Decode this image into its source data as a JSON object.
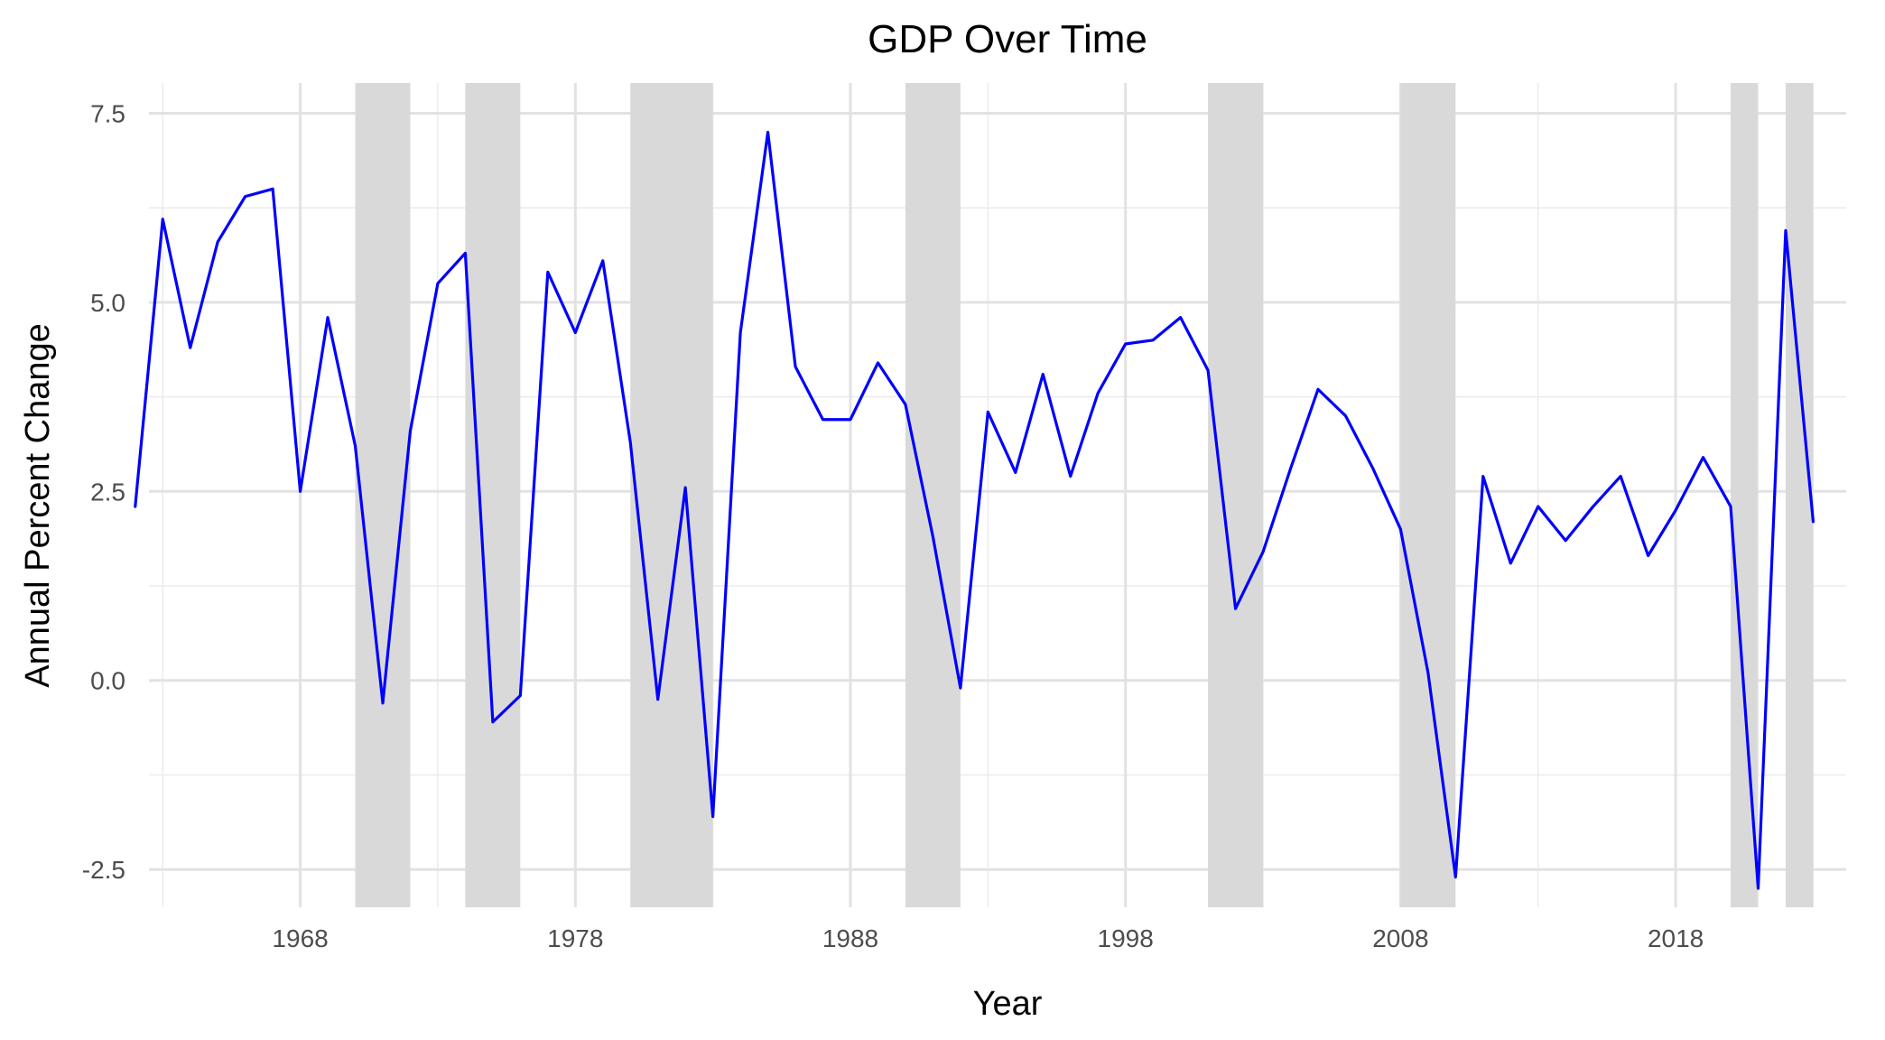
{
  "chart_data": {
    "type": "line",
    "title": "GDP Over Time",
    "xlabel": "Year",
    "ylabel": "Annual Percent Change",
    "xlim": [
      1962.5,
      2024.2
    ],
    "ylim": [
      -3.0,
      7.9
    ],
    "x_ticks": [
      1968,
      1978,
      1988,
      1998,
      2008,
      2018
    ],
    "x_minor_ticks": [
      1963,
      1973,
      1983,
      1993,
      2003,
      2013,
      2023
    ],
    "y_ticks": [
      -2.5,
      0.0,
      2.5,
      5.0,
      7.5
    ],
    "y_tick_labels": [
      "-2.5",
      "0.0",
      "2.5",
      "5.0",
      "7.5"
    ],
    "y_minor_ticks": [
      -1.25,
      1.25,
      3.75,
      6.25
    ],
    "grid": true,
    "line_color": "#0000ff",
    "shade_color": "#d9d9d9",
    "recession_shading": [
      [
        1970,
        1972
      ],
      [
        1974,
        1976
      ],
      [
        1980,
        1983
      ],
      [
        1990,
        1992
      ],
      [
        2001,
        2003
      ],
      [
        2008,
        2010
      ],
      [
        2020,
        2021
      ],
      [
        2022,
        2023
      ]
    ],
    "series": [
      {
        "x": [
          1962,
          1963,
          1964,
          1965,
          1966,
          1967,
          1968,
          1969,
          1970,
          1971,
          1972,
          1973,
          1974,
          1975,
          1976,
          1977,
          1978,
          1979,
          1980,
          1981,
          1982,
          1983,
          1984,
          1985,
          1986,
          1987,
          1988,
          1989,
          1990,
          1991,
          1992,
          1993,
          1994,
          1995,
          1996,
          1997,
          1998,
          1999,
          2000,
          2001,
          2002,
          2003,
          2004,
          2005,
          2006,
          2007,
          2008,
          2009,
          2010,
          2011,
          2012,
          2013,
          2014,
          2015,
          2016,
          2017,
          2018,
          2019,
          2020,
          2021,
          2022,
          2023
        ],
        "values": [
          2.3,
          6.1,
          4.4,
          5.8,
          6.4,
          6.5,
          2.5,
          4.8,
          3.1,
          -0.3,
          3.3,
          5.25,
          5.65,
          -0.55,
          -0.2,
          5.4,
          4.6,
          5.55,
          3.15,
          -0.25,
          2.55,
          -1.8,
          4.6,
          7.25,
          4.15,
          3.45,
          3.45,
          4.2,
          3.65,
          1.9,
          -0.1,
          3.55,
          2.75,
          4.05,
          2.7,
          3.8,
          4.45,
          4.5,
          4.8,
          4.1,
          0.95,
          1.7,
          2.8,
          3.85,
          3.5,
          2.8,
          2.0,
          0.1,
          -2.6,
          2.7,
          1.55,
          2.3,
          1.85,
          2.3,
          2.7,
          1.65,
          2.25,
          2.95,
          2.3,
          -2.75,
          5.95,
          2.1
        ]
      }
    ]
  }
}
